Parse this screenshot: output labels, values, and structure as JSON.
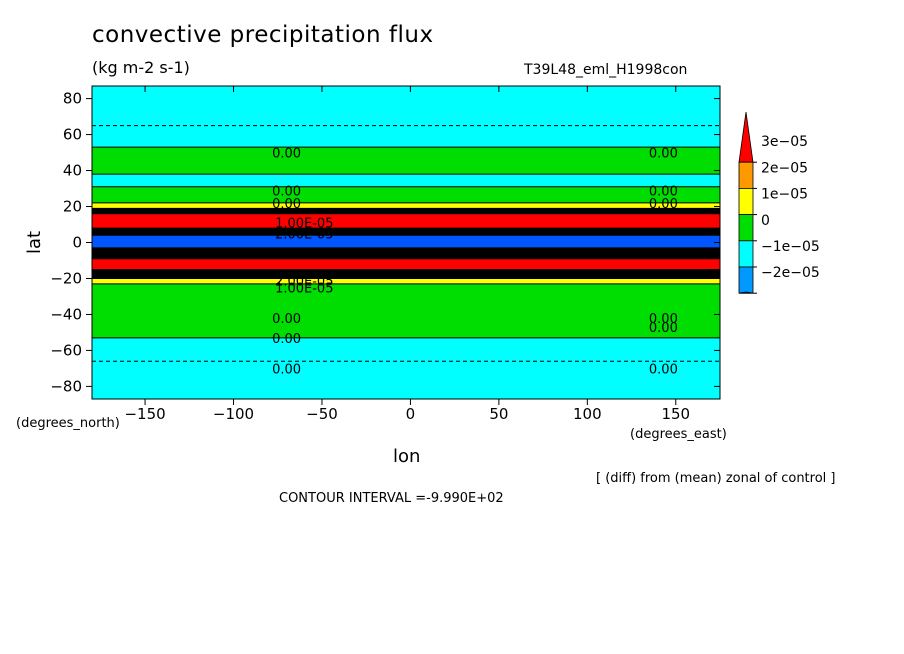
{
  "title": "convective precipitation flux",
  "units": "(kg m-2 s-1)",
  "run_label": "T39L48_eml_H1998con",
  "footnote": "[ (diff) from (mean) zonal of control ]",
  "contour_interval": "CONTOUR INTERVAL =-9.990E+02",
  "chart_data": {
    "type": "heatmap",
    "xlabel": "lon",
    "ylabel": "lat",
    "x_unit_label": "(degrees_east)",
    "y_unit_label": "(degrees_north)",
    "xlim": [
      -180,
      175
    ],
    "ylim": [
      -87,
      87
    ],
    "x_ticks": [
      -150,
      -100,
      -50,
      0,
      50,
      100,
      150
    ],
    "y_ticks": [
      80,
      60,
      40,
      20,
      0,
      -20,
      -40,
      -60,
      -80
    ],
    "colorbar": {
      "labels": [
        "3e-05",
        "2e-05",
        "1e-05",
        "0",
        "-1e-05",
        "-2e-05"
      ],
      "colors": [
        "#ff0000",
        "#ff9900",
        "#ffff00",
        "#00dd00",
        "#00ffff",
        "#0099ff",
        "#0055ff"
      ]
    },
    "lat_bands": [
      {
        "from": 87,
        "to": 53,
        "color": "#00ffff"
      },
      {
        "from": 53,
        "to": 38,
        "color": "#00dd00"
      },
      {
        "from": 38,
        "to": 31,
        "color": "#00ffff"
      },
      {
        "from": 31,
        "to": 22,
        "color": "#00dd00"
      },
      {
        "from": 22,
        "to": 19,
        "color": "#ffff00"
      },
      {
        "from": 19,
        "to": 16,
        "color": "#000000"
      },
      {
        "from": 16,
        "to": 8,
        "color": "#ff0000"
      },
      {
        "from": 8,
        "to": 4,
        "color": "#000000"
      },
      {
        "from": 4,
        "to": -3,
        "color": "#0055ff"
      },
      {
        "from": -3,
        "to": -9,
        "color": "#000000"
      },
      {
        "from": -9,
        "to": -15,
        "color": "#ff0000"
      },
      {
        "from": -15,
        "to": -20,
        "color": "#000000"
      },
      {
        "from": -20,
        "to": -23,
        "color": "#ffff00"
      },
      {
        "from": -23,
        "to": -53,
        "color": "#00dd00"
      },
      {
        "from": -53,
        "to": -87,
        "color": "#00ffff"
      }
    ],
    "dashed_lats": [
      65,
      -66
    ],
    "contour_labels": [
      {
        "text": "0.00",
        "lon": -70,
        "lat": 50
      },
      {
        "text": "0.00",
        "lon": 143,
        "lat": 50
      },
      {
        "text": "0.00",
        "lon": -70,
        "lat": 29
      },
      {
        "text": "0.00",
        "lon": -70,
        "lat": 22
      },
      {
        "text": "0.00",
        "lon": 143,
        "lat": 29
      },
      {
        "text": "0.00",
        "lon": 143,
        "lat": 22
      },
      {
        "text": "1.00E-05",
        "lon": -60,
        "lat": 11
      },
      {
        "text": "2.00E-05",
        "lon": -60,
        "lat": 5
      },
      {
        "text": "1.00E-05",
        "lon": -60,
        "lat": -25
      },
      {
        "text": "2.00E-05",
        "lon": -60,
        "lat": -21
      },
      {
        "text": "0.00",
        "lon": -70,
        "lat": -42
      },
      {
        "text": "0.00",
        "lon": -70,
        "lat": -53
      },
      {
        "text": "0.00",
        "lon": 143,
        "lat": -42
      },
      {
        "text": "0.00",
        "lon": 143,
        "lat": -47
      },
      {
        "text": "0.00",
        "lon": -70,
        "lat": -70
      },
      {
        "text": "0.00",
        "lon": 143,
        "lat": -70
      }
    ]
  }
}
